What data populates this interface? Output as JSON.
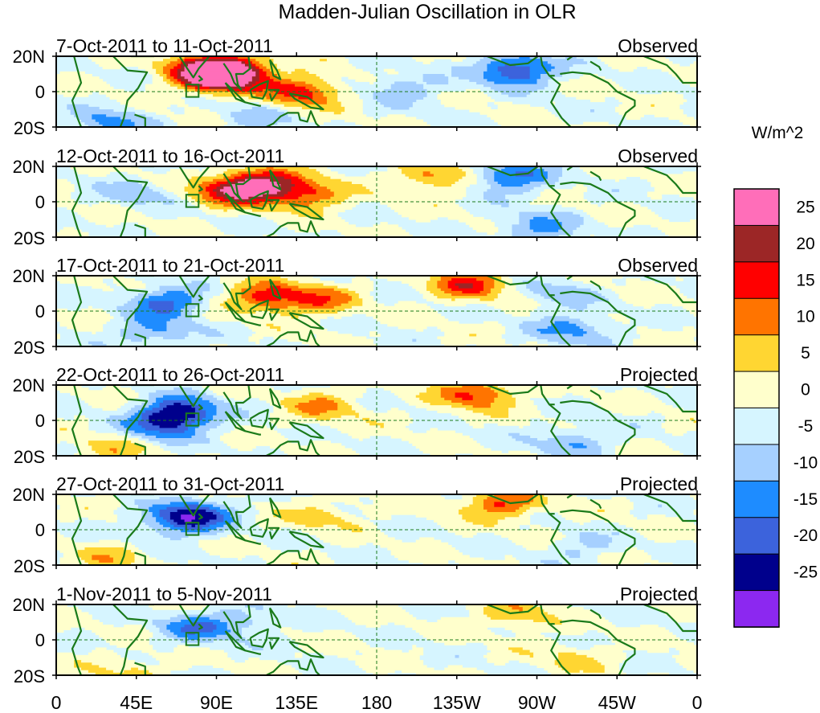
{
  "chart_data": {
    "type": "heatmap",
    "title": "Madden-Julian Oscillation in OLR",
    "units_label": "W/m^2",
    "lon_ticks": [
      "0",
      "45E",
      "90E",
      "135E",
      "180",
      "135W",
      "90W",
      "45W",
      "0"
    ],
    "lat_ticks": [
      "20N",
      "0",
      "20S"
    ],
    "colorbar": {
      "levels": [
        "25",
        "20",
        "15",
        "10",
        "5",
        "0",
        "-5",
        "-10",
        "-15",
        "-20",
        "-25"
      ],
      "colors": [
        "#ff6eb9",
        "#9c2626",
        "#ff0000",
        "#ff7400",
        "#ffd632",
        "#ffffcc",
        "#d6f5ff",
        "#a6d0ff",
        "#1e8cff",
        "#3c63dc",
        "#00008c",
        "#8c28f0"
      ]
    },
    "panels": [
      {
        "date_range": "7-Oct-2011 to 11-Oct-2011",
        "type_label": "Observed",
        "anomalies": [
          {
            "lon": 90,
            "lat": 8,
            "value": 27
          },
          {
            "lon": 100,
            "lat": 12,
            "value": 22
          },
          {
            "lon": 138,
            "lat": 0,
            "value": 18
          },
          {
            "lon": 80,
            "lat": 14,
            "value": 12
          },
          {
            "lon": 195,
            "lat": 2,
            "value": -9
          },
          {
            "lon": 258,
            "lat": 12,
            "value": -22
          },
          {
            "lon": 30,
            "lat": -18,
            "value": -12
          },
          {
            "lon": 110,
            "lat": -15,
            "value": -7
          }
        ]
      },
      {
        "date_range": "12-Oct-2011 to 16-Oct-2011",
        "type_label": "Observed",
        "anomalies": [
          {
            "lon": 115,
            "lat": 10,
            "value": 22
          },
          {
            "lon": 98,
            "lat": 6,
            "value": 18
          },
          {
            "lon": 140,
            "lat": 4,
            "value": 16
          },
          {
            "lon": 212,
            "lat": 14,
            "value": 12
          },
          {
            "lon": 255,
            "lat": 14,
            "value": -17
          },
          {
            "lon": 270,
            "lat": -15,
            "value": -12
          },
          {
            "lon": 45,
            "lat": 5,
            "value": -7
          }
        ]
      },
      {
        "date_range": "17-Oct-2011 to 21-Oct-2011",
        "type_label": "Observed",
        "anomalies": [
          {
            "lon": 118,
            "lat": 8,
            "value": 18
          },
          {
            "lon": 148,
            "lat": 6,
            "value": 12
          },
          {
            "lon": 232,
            "lat": 15,
            "value": 17
          },
          {
            "lon": 62,
            "lat": 5,
            "value": -17
          },
          {
            "lon": 55,
            "lat": -12,
            "value": -11
          },
          {
            "lon": 290,
            "lat": -10,
            "value": -12
          },
          {
            "lon": 280,
            "lat": 10,
            "value": -7
          }
        ]
      },
      {
        "date_range": "22-Oct-2011 to 26-Oct-2011",
        "type_label": "Projected",
        "anomalies": [
          {
            "lon": 70,
            "lat": 5,
            "value": -22
          },
          {
            "lon": 60,
            "lat": -3,
            "value": -15
          },
          {
            "lon": 236,
            "lat": 15,
            "value": 17
          },
          {
            "lon": 150,
            "lat": 8,
            "value": 10
          },
          {
            "lon": 290,
            "lat": -12,
            "value": -10
          },
          {
            "lon": 30,
            "lat": -17,
            "value": 7
          }
        ]
      },
      {
        "date_range": "27-Oct-2011 to 31-Oct-2011",
        "type_label": "Projected",
        "anomalies": [
          {
            "lon": 70,
            "lat": 5,
            "value": -17
          },
          {
            "lon": 80,
            "lat": 10,
            "value": -12
          },
          {
            "lon": 250,
            "lat": 15,
            "value": 16
          },
          {
            "lon": 150,
            "lat": 8,
            "value": 7
          },
          {
            "lon": 30,
            "lat": -17,
            "value": 7
          },
          {
            "lon": 295,
            "lat": -10,
            "value": -6
          }
        ]
      },
      {
        "date_range": "1-Nov-2011 to 5-Nov-2011",
        "type_label": "Projected",
        "anomalies": [
          {
            "lon": 78,
            "lat": 7,
            "value": -13
          },
          {
            "lon": 105,
            "lat": 10,
            "value": -7
          },
          {
            "lon": 258,
            "lat": 14,
            "value": 9
          },
          {
            "lon": 290,
            "lat": -10,
            "value": 6
          },
          {
            "lon": 40,
            "lat": -17,
            "value": 6
          }
        ]
      }
    ]
  }
}
